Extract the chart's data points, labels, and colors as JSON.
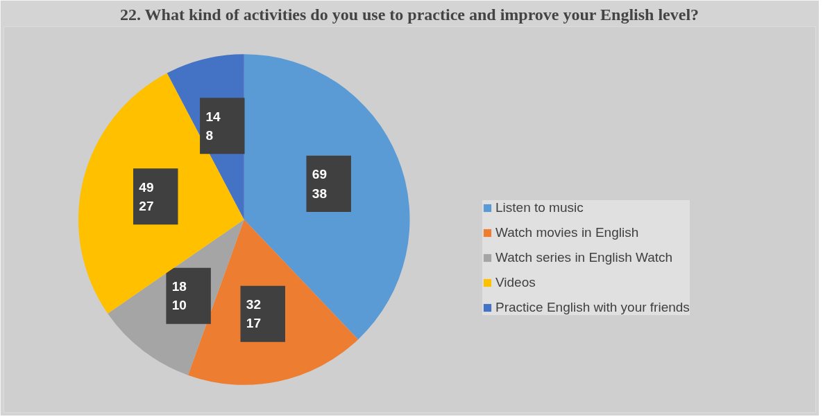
{
  "chart_data": {
    "type": "pie",
    "title": "22. What kind of activities do you use to practice and improve your English level?",
    "categories": [
      "Listen to music",
      "Watch movies in English",
      "Watch series in English Watch",
      "Videos",
      "Practice English with your friends"
    ],
    "values": [
      69,
      32,
      18,
      49,
      14
    ],
    "colors": [
      "#5b9bd5",
      "#ed7d31",
      "#a5a5a5",
      "#ffc000",
      "#4472c4"
    ],
    "value_labels": [
      "69\n38",
      "32\n17",
      "18\n10",
      "49\n27",
      "14\n8"
    ],
    "legend": "right"
  }
}
